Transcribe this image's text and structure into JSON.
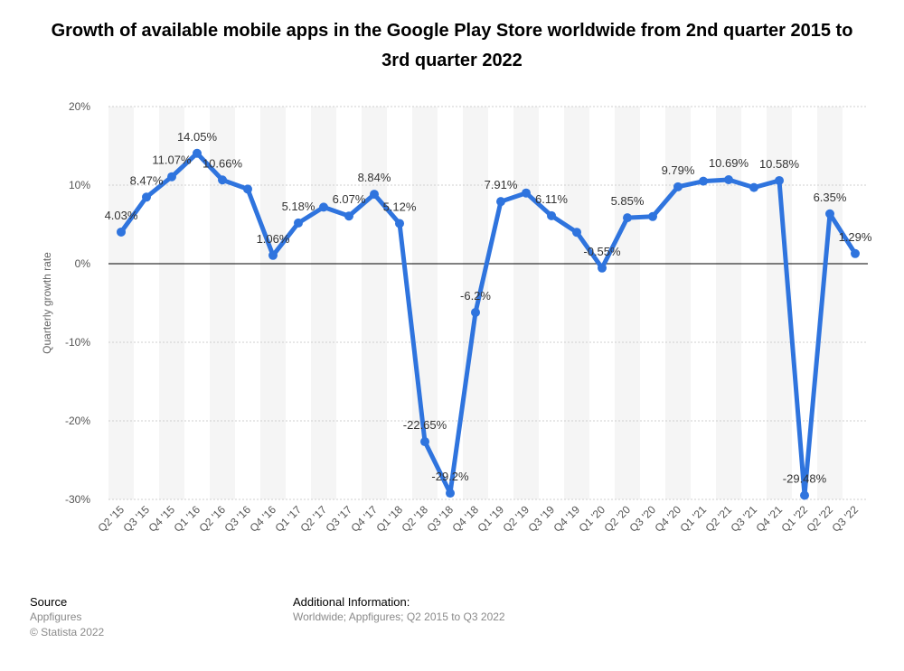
{
  "title": "Growth of available mobile apps in the Google Play Store worldwide from 2nd quarter 2015 to 3rd quarter 2022",
  "footer": {
    "source_label": "Source",
    "source_name": "Appfigures",
    "copyright": "© Statista 2022",
    "additional_label": "Additional Information:",
    "additional_text": "Worldwide; Appfigures; Q2 2015 to Q3 2022"
  },
  "chart_data": {
    "type": "line",
    "title": "Growth of available mobile apps in the Google Play Store worldwide from 2nd quarter 2015 to 3rd quarter 2022",
    "xlabel": "",
    "ylabel": "Quarterly growth rate",
    "ylim": [
      -30,
      20
    ],
    "yticks": [
      20,
      10,
      0,
      -10,
      -20,
      -30
    ],
    "ytick_labels": [
      "20%",
      "10%",
      "0%",
      "-10%",
      "-20%",
      "-30%"
    ],
    "grid": true,
    "legend": "none",
    "line_color": "#2f74de",
    "categories": [
      "Q2 '15",
      "Q3 '15",
      "Q4 '15",
      "Q1 '16",
      "Q2 '16",
      "Q3 '16",
      "Q4 '16",
      "Q1 '17",
      "Q2 '17",
      "Q3 '17",
      "Q4 '17",
      "Q1 '18",
      "Q2 '18",
      "Q3 '18",
      "Q4 '18",
      "Q1 '19",
      "Q2 '19",
      "Q3 '19",
      "Q4 '19",
      "Q1 '20",
      "Q2 '20",
      "Q3 '20",
      "Q4 '20",
      "Q1 '21",
      "Q2 '21",
      "Q3 '21",
      "Q4 '21",
      "Q1 '22",
      "Q2 '22",
      "Q3 '22"
    ],
    "values": [
      4.03,
      8.47,
      11.07,
      14.05,
      10.66,
      9.5,
      1.06,
      5.18,
      7.2,
      6.07,
      8.84,
      5.12,
      -22.65,
      -29.2,
      -6.2,
      7.91,
      9.0,
      6.11,
      4.0,
      -0.55,
      5.85,
      6.0,
      9.79,
      10.5,
      10.69,
      9.7,
      10.58,
      -29.48,
      6.35,
      1.29
    ],
    "data_labels": [
      "4.03%",
      "8.47%",
      "11.07%",
      "14.05%",
      "10.66%",
      "",
      "1.06%",
      "5.18%",
      "",
      "6.07%",
      "8.84%",
      "5.12%",
      "-22.65%",
      "-29.2%",
      "-6.2%",
      "7.91%",
      "",
      "6.11%",
      "",
      "-0.55%",
      "5.85%",
      "",
      "9.79%",
      "",
      "10.69%",
      "",
      "10.58%",
      "-29.48%",
      "6.35%",
      "1.29%"
    ]
  }
}
